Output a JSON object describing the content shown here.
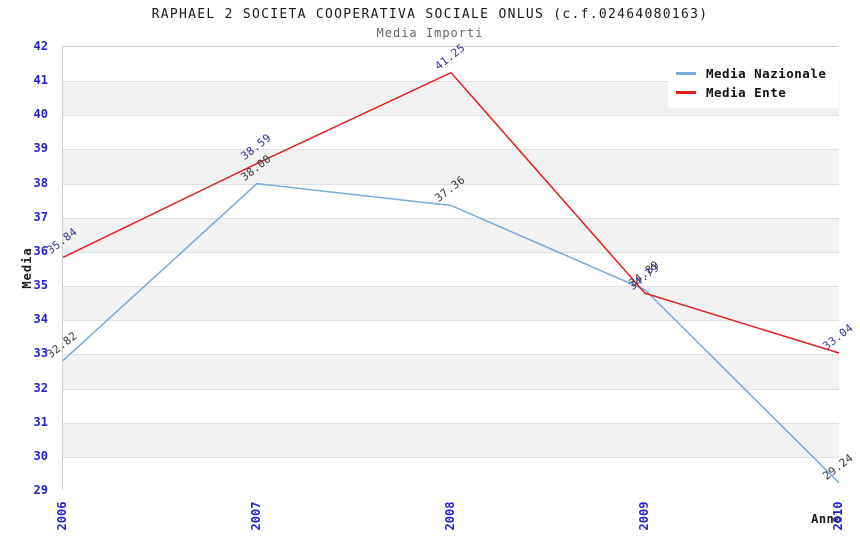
{
  "header": {
    "title": "RAPHAEL 2 SOCIETA COOPERATIVA SOCIALE ONLUS (c.f.02464080163)",
    "subtitle": "Media Importi"
  },
  "chart_data": {
    "type": "line",
    "x": [
      2006,
      2007,
      2008,
      2009,
      2010
    ],
    "x_tick_labels": [
      "2006",
      "2007",
      "2008",
      "2009",
      "2010"
    ],
    "series": [
      {
        "name": "Media Nazionale",
        "color": "#7aa9dc",
        "label_color": "#3a3a3a",
        "values": [
          32.82,
          38.0,
          37.36,
          34.89,
          29.24
        ],
        "labels": [
          "32.82",
          "38.00",
          "37.36",
          "34.89",
          "29.24"
        ]
      },
      {
        "name": "Media Ente",
        "color": "#e02020",
        "label_color": "#333399",
        "values": [
          35.84,
          38.59,
          41.25,
          34.79,
          33.04
        ],
        "labels": [
          "35.84",
          "38.59",
          "41.25",
          "34.79",
          "33.04"
        ]
      }
    ],
    "xlabel": "Anno",
    "ylabel": "Media",
    "ylim": [
      29,
      42
    ],
    "y_tick_step": 1,
    "grid": true,
    "legend_position": "top-right",
    "band_colors": [
      "#ffffff",
      "#f2f2f2"
    ],
    "tick_color": "#2323cc"
  }
}
